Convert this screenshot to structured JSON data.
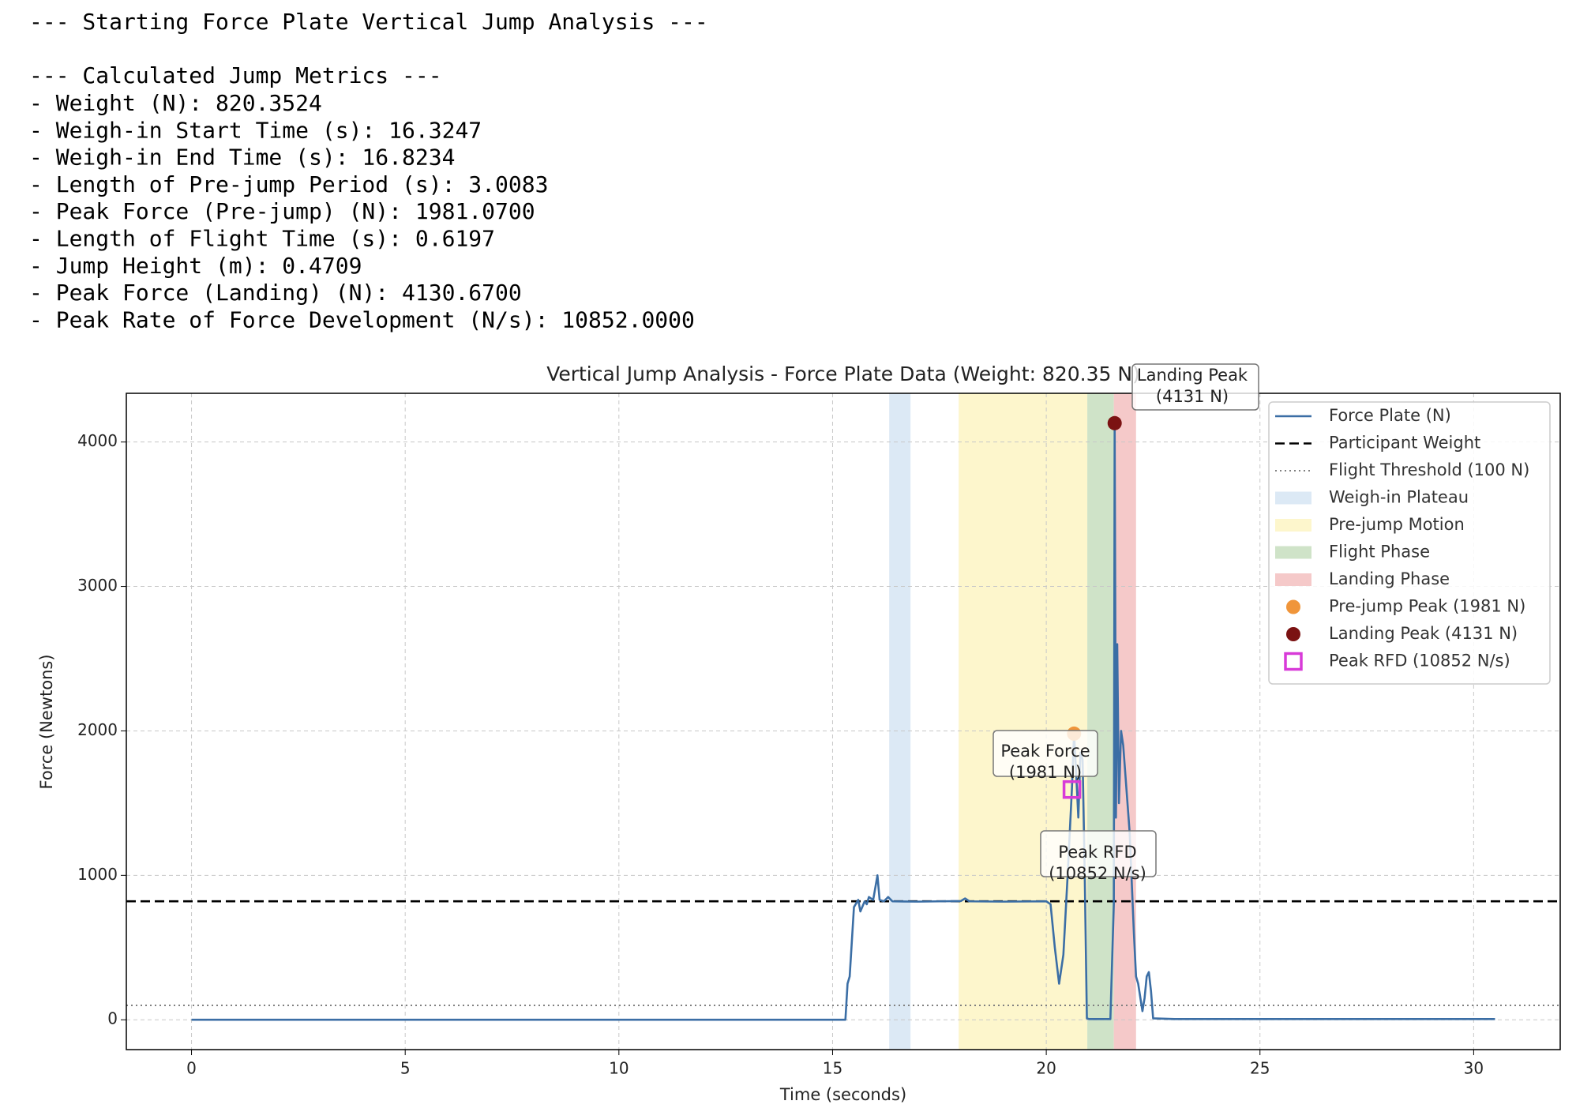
{
  "console": {
    "header": "--- Starting Force Plate Vertical Jump Analysis ---",
    "section": "--- Calculated Jump Metrics ---",
    "lines": [
      "- Weight (N): 820.3524",
      "- Weigh-in Start Time (s): 16.3247",
      "- Weigh-in End Time (s): 16.8234",
      "- Length of Pre-jump Period (s): 3.0083",
      "- Peak Force (Pre-jump) (N): 1981.0700",
      "- Length of Flight Time (s): 0.6197",
      "- Jump Height (m): 0.4709",
      "- Peak Force (Landing) (N): 4130.6700",
      "- Peak Rate of Force Development (N/s): 10852.0000"
    ]
  },
  "chart_data": {
    "type": "line",
    "title": "Vertical Jump Analysis - Force Plate Data (Weight: 820.35 N)",
    "xlabel": "Time (seconds)",
    "ylabel": "Force (Newtons)",
    "xlim": [
      -1.525,
      32.025
    ],
    "ylim": [
      -206.5,
      4337.2
    ],
    "xticks": [
      0,
      5,
      10,
      15,
      20,
      25,
      30
    ],
    "yticks": [
      0,
      1000,
      2000,
      3000,
      4000
    ],
    "grid": true,
    "legend": "upper right",
    "series": [
      {
        "name": "Force Plate (N)",
        "color": "#3b6ea5",
        "x": [
          0,
          15.3,
          15.35,
          15.4,
          15.5,
          15.6,
          15.65,
          15.75,
          15.8,
          15.85,
          15.95,
          16.05,
          16.1,
          16.2,
          16.3,
          16.4,
          17,
          17.5,
          18,
          18.1,
          18.2,
          19,
          20,
          20.1,
          20.2,
          20.3,
          20.4,
          20.5,
          20.6,
          20.65,
          20.7,
          20.75,
          20.8,
          20.85,
          20.9,
          20.95,
          21,
          21.5,
          21.58,
          21.6,
          21.63,
          21.66,
          21.7,
          21.75,
          21.8,
          21.85,
          21.95,
          22.05,
          22.1,
          22.15,
          22.25,
          22.3,
          22.35,
          22.4,
          22.45,
          22.5,
          23,
          30.5
        ],
        "values": [
          0,
          0,
          250,
          300,
          780,
          830,
          750,
          820,
          800,
          850,
          830,
          1000,
          830,
          820,
          850,
          820,
          818,
          820,
          822,
          840,
          820,
          818,
          820,
          800,
          500,
          250,
          450,
          1000,
          1600,
          1981.07,
          1700,
          1400,
          1850,
          1800,
          1000,
          10,
          5,
          5,
          800,
          4130.67,
          1400,
          2600,
          1500,
          2000,
          1900,
          1700,
          1300,
          600,
          300,
          250,
          60,
          150,
          300,
          330,
          200,
          10,
          5,
          5
        ]
      }
    ],
    "hlines": [
      {
        "name": "Participant Weight",
        "value": 820.35,
        "color": "#000000",
        "style": "dashed"
      },
      {
        "name": "Flight Threshold (100 N)",
        "value": 100,
        "color": "#808080",
        "style": "dotted"
      }
    ],
    "spans": [
      {
        "name": "Weigh-in Plateau",
        "start": 16.3247,
        "end": 16.8234,
        "color": "#dce9f5"
      },
      {
        "name": "Pre-jump Motion",
        "start": 17.95,
        "end": 20.96,
        "color": "#fdf6cc"
      },
      {
        "name": "Flight Phase",
        "start": 20.96,
        "end": 21.58,
        "color": "#cfe3c8"
      },
      {
        "name": "Landing Phase",
        "start": 21.58,
        "end": 22.1,
        "color": "#f5c9c9"
      }
    ],
    "points": [
      {
        "name": "Pre-jump Peak (1981 N)",
        "x": 20.65,
        "y": 1981.07,
        "color": "#f0953a",
        "marker": "circle"
      },
      {
        "name": "Landing Peak (4131 N)",
        "x": 21.6,
        "y": 4130.67,
        "color": "#7b1212",
        "marker": "circle"
      },
      {
        "name": "Peak RFD (10852 N/s)",
        "x": 20.6,
        "y": 1594,
        "color": "#d83ad8",
        "marker": "square"
      }
    ],
    "annotations": [
      {
        "lines": [
          "Landing Peak",
          "(4131 N)"
        ]
      },
      {
        "lines": [
          "Peak Force",
          "(1981 N)"
        ]
      },
      {
        "lines": [
          "Peak RFD",
          "(10852 N/s)"
        ]
      }
    ]
  }
}
